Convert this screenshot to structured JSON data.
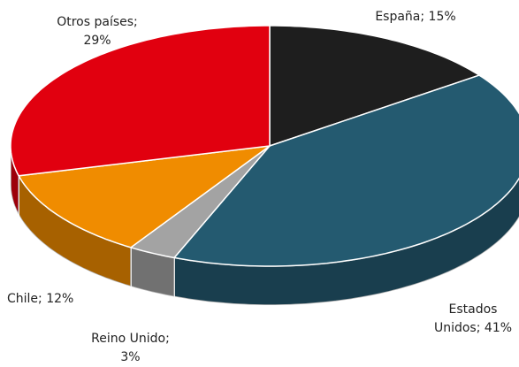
{
  "chart_data": {
    "type": "pie3d",
    "categories": [
      "España;",
      "Estados Unidos;",
      "Reino Unido;",
      "Chile;",
      "Otros países;"
    ],
    "values": [
      15,
      41,
      3,
      12,
      29
    ],
    "value_labels": [
      "15%",
      "41%",
      "3%",
      "12%",
      "29%"
    ],
    "colors": [
      "#1e1e1e",
      "#245a70",
      "#a3a3a3",
      "#f08c00",
      "#e1000f"
    ]
  }
}
